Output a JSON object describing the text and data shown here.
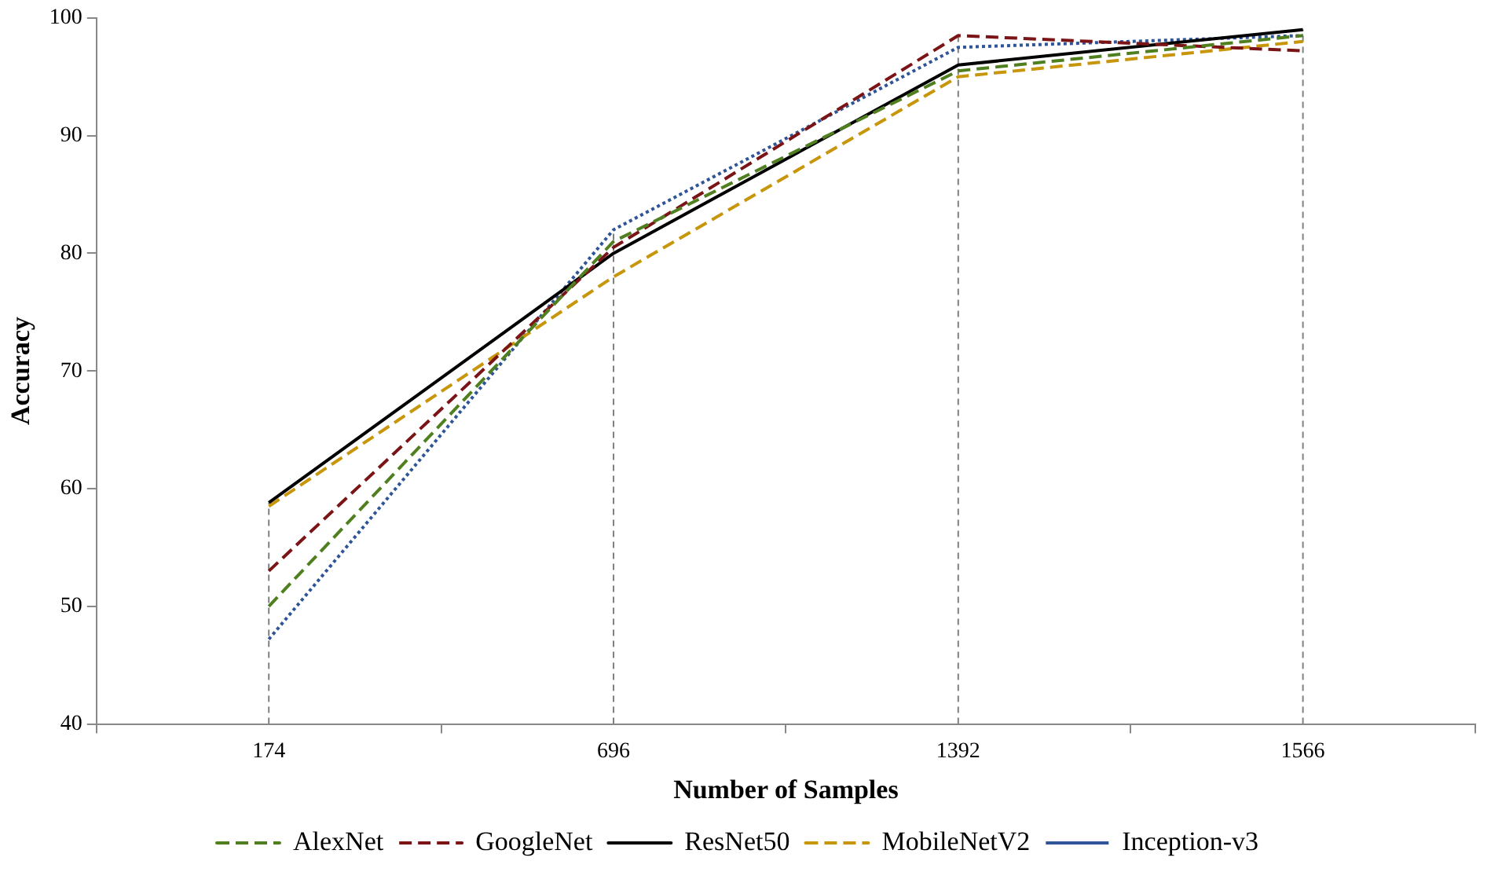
{
  "chart_data": {
    "type": "line",
    "xlabel": "Number of Samples",
    "ylabel": "Accuracy",
    "categories": [
      "174",
      "696",
      "1392",
      "1566"
    ],
    "series": [
      {
        "name": "AlexNet",
        "color": "#4f7f1f",
        "line_style": "dashed",
        "values": [
          50.0,
          81.0,
          95.5,
          98.5
        ]
      },
      {
        "name": "GoogleNet",
        "color": "#7b1416",
        "line_style": "dashed",
        "values": [
          53.0,
          80.5,
          98.5,
          97.2
        ]
      },
      {
        "name": "ResNet50",
        "color": "#000000",
        "line_style": "solid",
        "values": [
          58.8,
          80.0,
          96.0,
          99.0
        ]
      },
      {
        "name": "MobileNetV2",
        "color": "#c8960a",
        "line_style": "dashed",
        "values": [
          58.5,
          78.0,
          95.0,
          98.0
        ]
      },
      {
        "name": "Inception-v3",
        "color": "#2f5597",
        "line_style": "dotted",
        "values": [
          47.2,
          82.0,
          97.5,
          98.5
        ]
      }
    ],
    "ylim": [
      40,
      100
    ],
    "yticks": [
      40,
      50,
      60,
      70,
      80,
      90,
      100
    ],
    "ref_lines": [
      {
        "axis": "x",
        "value": "174",
        "color": "#808080",
        "line_style": "dashed"
      },
      {
        "axis": "x",
        "value": "696",
        "color": "#808080",
        "line_style": "dashed"
      },
      {
        "axis": "x",
        "value": "1392",
        "color": "#808080",
        "line_style": "dashed"
      },
      {
        "axis": "x",
        "value": "1566",
        "color": "#808080",
        "line_style": "dashed"
      }
    ],
    "grid": false,
    "legend": "bottom",
    "marker": "none"
  }
}
